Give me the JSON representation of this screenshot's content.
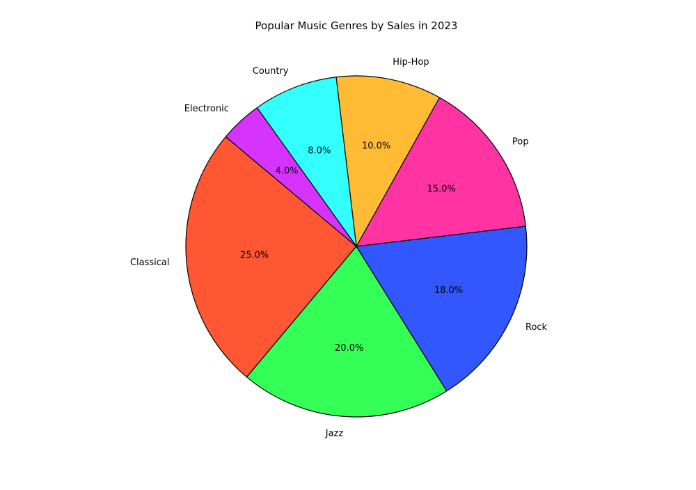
{
  "chart_data": {
    "type": "pie",
    "title": "Popular Music Genres by Sales in 2023",
    "categories": [
      "Classical",
      "Jazz",
      "Rock",
      "Pop",
      "Hip-Hop",
      "Country",
      "Electronic"
    ],
    "values": [
      25.0,
      20.0,
      18.0,
      15.0,
      10.0,
      8.0,
      4.0
    ],
    "value_labels": [
      "25.0%",
      "20.0%",
      "18.0%",
      "15.0%",
      "10.0%",
      "8.0%",
      "4.0%"
    ],
    "colors": [
      "#ff5733",
      "#33ff57",
      "#3357ff",
      "#ff33a1",
      "#ffbb33",
      "#33ffff",
      "#d633ff"
    ],
    "start_angle_deg": 140,
    "direction": "counterclockwise",
    "edge_color": "#000000",
    "legend": "none"
  }
}
